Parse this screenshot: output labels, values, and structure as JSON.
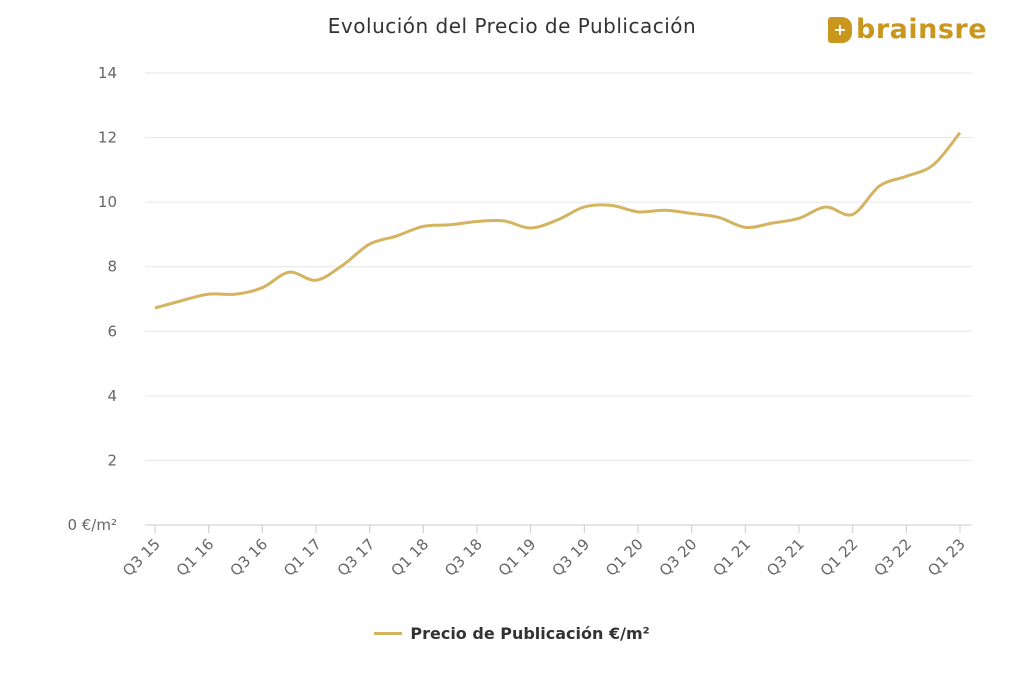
{
  "logo_text": "brainsre",
  "chart_data": {
    "type": "line",
    "title": "Evolución del Precio de Publicación",
    "xlabel": "",
    "ylabel": "",
    "ylim": [
      0,
      14
    ],
    "yticks": [
      "0 €/m²",
      "2",
      "4",
      "6",
      "8",
      "10",
      "12",
      "14"
    ],
    "grid": true,
    "legend_position": "bottom",
    "x": [
      "Q3 15",
      "Q4 15",
      "Q1 16",
      "Q2 16",
      "Q3 16",
      "Q4 16",
      "Q1 17",
      "Q2 17",
      "Q3 17",
      "Q4 17",
      "Q1 18",
      "Q2 18",
      "Q3 18",
      "Q4 18",
      "Q1 19",
      "Q2 19",
      "Q3 19",
      "Q4 19",
      "Q1 20",
      "Q2 20",
      "Q3 20",
      "Q4 20",
      "Q1 21",
      "Q2 21",
      "Q3 21",
      "Q4 21",
      "Q1 22",
      "Q2 22",
      "Q3 22",
      "Q4 22",
      "Q1 23"
    ],
    "xtick_labels": [
      "Q3 15",
      "Q1 16",
      "Q3 16",
      "Q1 17",
      "Q3 17",
      "Q1 18",
      "Q3 18",
      "Q1 19",
      "Q3 19",
      "Q1 20",
      "Q3 20",
      "Q1 21",
      "Q3 21",
      "Q1 22",
      "Q3 22",
      "Q1 23"
    ],
    "series": [
      {
        "name": "Precio de Publicación €/m²",
        "color": "#d4b461",
        "values": [
          6.72,
          6.95,
          7.15,
          7.15,
          7.35,
          7.83,
          7.58,
          8.05,
          8.7,
          8.95,
          9.25,
          9.3,
          9.4,
          9.42,
          9.2,
          9.45,
          9.85,
          9.9,
          9.7,
          9.75,
          9.65,
          9.53,
          9.22,
          9.35,
          9.5,
          9.85,
          9.62,
          10.5,
          10.8,
          11.15,
          12.15
        ]
      }
    ]
  }
}
